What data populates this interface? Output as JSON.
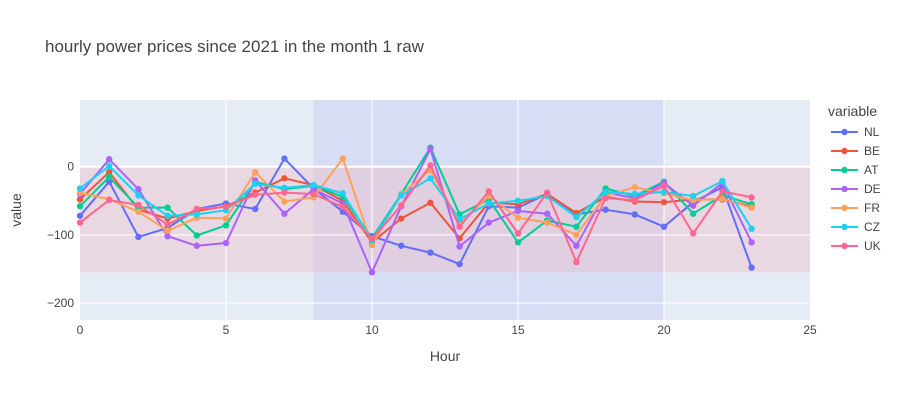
{
  "chart_data": {
    "type": "line",
    "title": "hourly power prices since 2021 in the month 1  raw",
    "xlabel": "Hour",
    "ylabel": "value",
    "xlim": [
      0,
      25
    ],
    "ylim": [
      -225,
      98
    ],
    "xticks": [
      0,
      5,
      10,
      15,
      20,
      25
    ],
    "yticks": [
      0,
      -100,
      -200
    ],
    "ytick_labels": [
      "0",
      "−100",
      "−200"
    ],
    "grid": true,
    "legend_title": "variable",
    "legend_position": "right",
    "shaded_regions": [
      {
        "axis": "x",
        "from": 8,
        "to": 20,
        "color": "#c5cbf4",
        "opacity": 0.45
      },
      {
        "axis": "y",
        "from": -155,
        "to": 0,
        "color": "#f2b5b9",
        "opacity": 0.35
      }
    ],
    "x": [
      0,
      1,
      2,
      3,
      4,
      5,
      6,
      7,
      8,
      9,
      10,
      11,
      12,
      13,
      14,
      15,
      16,
      17,
      18,
      19,
      20,
      21,
      22,
      23
    ],
    "series": [
      {
        "name": "NL",
        "color": "#636efa",
        "values": [
          -72,
          -22,
          -103,
          -90,
          -62,
          -54,
          -62,
          12,
          -32,
          -66,
          -102,
          -116,
          -126,
          -143,
          -58,
          -60,
          -40,
          -70,
          -63,
          -70,
          -88,
          -52,
          -30,
          -148
        ]
      },
      {
        "name": "BE",
        "color": "#ef553b",
        "values": [
          -48,
          -8,
          -63,
          -76,
          -65,
          -58,
          -38,
          -17,
          -27,
          -50,
          -111,
          -76,
          -53,
          -105,
          -53,
          -55,
          -40,
          -68,
          -44,
          -51,
          -52,
          -48,
          -48,
          -58
        ]
      },
      {
        "name": "AT",
        "color": "#00cc96",
        "values": [
          -58,
          -15,
          -60,
          -60,
          -101,
          -86,
          -22,
          -33,
          -28,
          -44,
          -105,
          -40,
          28,
          -70,
          -48,
          -111,
          -79,
          -88,
          -32,
          -43,
          -22,
          -69,
          -42,
          -55
        ]
      },
      {
        "name": "DE",
        "color": "#ab63fa",
        "values": [
          -40,
          11,
          -33,
          -102,
          -116,
          -112,
          -20,
          -69,
          -33,
          -54,
          -155,
          -58,
          26,
          -117,
          -82,
          -65,
          -69,
          -116,
          -38,
          -46,
          -24,
          -57,
          -24,
          -111
        ]
      },
      {
        "name": "FR",
        "color": "#ffa15a",
        "values": [
          -38,
          -48,
          -66,
          -94,
          -75,
          -76,
          -8,
          -51,
          -45,
          12,
          -115,
          -40,
          -5,
          -84,
          -43,
          -75,
          -82,
          -100,
          -43,
          -30,
          -39,
          -49,
          -47,
          -60
        ]
      },
      {
        "name": "CZ",
        "color": "#19d3f3",
        "values": [
          -32,
          1,
          -42,
          -72,
          -70,
          -64,
          -25,
          -31,
          -27,
          -39,
          -108,
          -42,
          -17,
          -77,
          -54,
          -50,
          -43,
          -74,
          -37,
          -40,
          -37,
          -43,
          -21,
          -91
        ]
      },
      {
        "name": "UK",
        "color": "#ff6692",
        "values": [
          -82,
          -49,
          -56,
          -85,
          -62,
          -59,
          -41,
          -38,
          -40,
          -59,
          -106,
          -57,
          2,
          -88,
          -36,
          -98,
          -38,
          -140,
          -46,
          -49,
          -28,
          -98,
          -36,
          -45
        ]
      }
    ]
  }
}
